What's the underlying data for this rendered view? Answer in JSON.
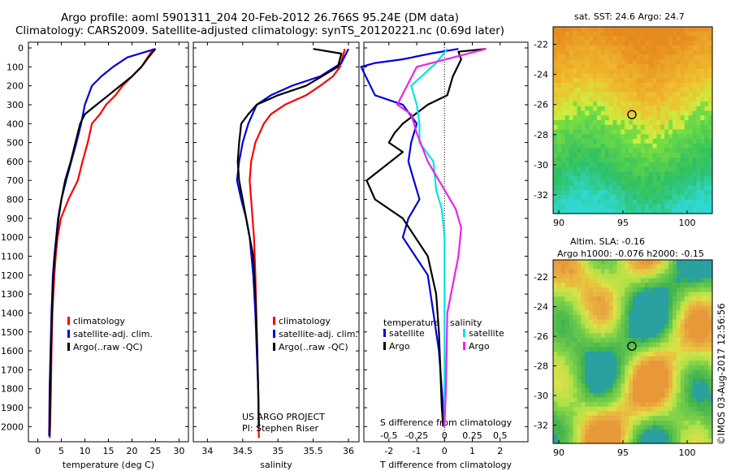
{
  "title_line1": "Argo profile: aoml 5901311_204 20-Feb-2012 26.766S 95.24E (DM data)",
  "title_line2": "Climatology: CARS2009. Satellite-adjusted climatology: synTS_20120221.nc (0.69d later)",
  "colors": {
    "climatology": "#ff0000",
    "satellite": "#0000dd",
    "argo": "#000000",
    "sal_satellite": "#00e5e5",
    "sal_argo": "#ee22ee"
  },
  "chart_data": [
    {
      "id": "temperature",
      "type": "line",
      "xlabel": "temperature (deg C)",
      "xlim": [
        -2,
        32
      ],
      "xticks": [
        0,
        5,
        10,
        15,
        20,
        25,
        30
      ],
      "ylim": [
        2080,
        -30
      ],
      "yticks": [
        0,
        100,
        200,
        300,
        400,
        500,
        600,
        700,
        800,
        900,
        1000,
        1100,
        1200,
        1300,
        1400,
        1500,
        1600,
        1700,
        1800,
        1900,
        2000
      ],
      "series": [
        {
          "name": "climatology",
          "color": "climatology",
          "x": [
            24.5,
            22,
            20,
            18,
            16.5,
            14.5,
            13.2,
            11.5,
            10.6,
            9.5,
            8.5,
            6.5,
            4.9,
            4.2,
            3.8,
            3.5,
            3.1,
            2.9,
            2.8,
            2.6,
            2.5
          ],
          "y": [
            5,
            100,
            150,
            200,
            250,
            300,
            350,
            400,
            500,
            600,
            700,
            800,
            900,
            1000,
            1100,
            1200,
            1400,
            1600,
            1800,
            2000,
            2060
          ]
        },
        {
          "name": "satellite-adj. clim.",
          "color": "satellite",
          "x": [
            25,
            19,
            16,
            13.5,
            11.5,
            10,
            9.2,
            8.2,
            7.1,
            6,
            5,
            4.3,
            3.9,
            3.5,
            3.2,
            2.9,
            2.7,
            2.5,
            2.4
          ],
          "y": [
            5,
            50,
            100,
            150,
            200,
            300,
            400,
            500,
            600,
            700,
            800,
            900,
            1000,
            1100,
            1200,
            1400,
            1600,
            1800,
            2050
          ]
        },
        {
          "name": "Argo(..raw -QC)",
          "color": "argo",
          "x": [
            25,
            24.5,
            23.5,
            22,
            20,
            17.5,
            15,
            12.5,
            10,
            9,
            8,
            7,
            5.8,
            5,
            4.4,
            4,
            3.6,
            3.3,
            3,
            2.8,
            2.6,
            2.5
          ],
          "y": [
            5,
            20,
            50,
            100,
            150,
            200,
            250,
            300,
            350,
            400,
            500,
            600,
            700,
            800,
            900,
            1000,
            1100,
            1200,
            1400,
            1600,
            1800,
            2050
          ]
        }
      ],
      "legend": [
        "climatology",
        "satellite-adj. clim.",
        "Argo(..raw -QC)"
      ]
    },
    {
      "id": "salinity",
      "type": "line",
      "xlabel": "salinity",
      "xlim": [
        33.8,
        36.15
      ],
      "xticks": [
        34,
        34.5,
        35,
        35.5,
        36
      ],
      "xticklabels": [
        "34",
        "34.5",
        "35",
        "35.5",
        "36"
      ],
      "ylim": [
        2080,
        -30
      ],
      "series": [
        {
          "name": "climatology",
          "color": "climatology",
          "x": [
            35.95,
            35.88,
            35.78,
            35.6,
            35.4,
            35.1,
            34.9,
            34.8,
            34.68,
            34.62,
            34.6,
            34.62,
            34.64,
            34.66,
            34.68,
            34.7,
            34.72,
            34.73
          ],
          "y": [
            5,
            100,
            150,
            200,
            250,
            300,
            350,
            400,
            500,
            600,
            700,
            800,
            900,
            1000,
            1200,
            1500,
            1800,
            2060
          ]
        },
        {
          "name": "satellite-adj. clim.",
          "color": "satellite",
          "x": [
            36,
            35.9,
            35.6,
            35.2,
            34.9,
            34.7,
            34.58,
            34.5,
            34.45,
            34.42,
            34.48,
            34.55,
            34.6,
            34.65,
            34.68,
            34.7,
            34.72,
            34.73
          ],
          "y": [
            5,
            80,
            150,
            200,
            250,
            300,
            400,
            500,
            600,
            700,
            800,
            900,
            1000,
            1200,
            1400,
            1600,
            1800,
            2000
          ]
        },
        {
          "name": "Argo(..raw -QC)",
          "color": "argo",
          "x": [
            35.5,
            35.9,
            35.85,
            35.4,
            35.0,
            34.7,
            34.58,
            34.48,
            34.45,
            34.43,
            34.45,
            34.5,
            34.55,
            34.6,
            34.65,
            34.68,
            34.7,
            34.72,
            34.73
          ],
          "y": [
            5,
            30,
            100,
            200,
            250,
            300,
            350,
            400,
            500,
            600,
            700,
            800,
            900,
            1000,
            1100,
            1300,
            1500,
            1800,
            2000
          ]
        }
      ],
      "legend": [
        "climatology",
        "satellite-adj. clim.",
        "Argo(..raw -QC)"
      ],
      "annotation": [
        "US ARGO PROJECT",
        "PI: Stephen Riser"
      ]
    },
    {
      "id": "differences",
      "type": "line",
      "xlabel": "T difference from climatology",
      "xlabel_top": "S difference from climatology",
      "xlim": [
        -2.9,
        3.0
      ],
      "xticks": [
        -2,
        -1,
        0,
        1,
        2
      ],
      "xticks_top": [
        -0.5,
        -0.25,
        0,
        0.25,
        0.5
      ],
      "ylim": [
        2080,
        -30
      ],
      "series": [
        {
          "name": "T satellite",
          "color": "satellite",
          "x": [
            0.5,
            -0.5,
            -1.5,
            -2.5,
            -3,
            -2.5,
            -1.5,
            -1,
            -1.2,
            -1.3,
            -1.1,
            -0.9,
            -1.3,
            -1.5,
            -0.6,
            -0.4,
            -0.2,
            -0.1,
            0
          ],
          "y": [
            5,
            30,
            60,
            80,
            100,
            250,
            300,
            400,
            500,
            600,
            700,
            800,
            900,
            1000,
            1200,
            1400,
            1600,
            1800,
            2000
          ]
        },
        {
          "name": "T Argo",
          "color": "argo",
          "x": [
            1.5,
            0.5,
            0.6,
            0.3,
            0.1,
            -0.6,
            -1.5,
            -1.8,
            -2.0,
            -1.5,
            -2.8,
            -2.5,
            -1.5,
            -0.6,
            -0.3,
            -0.2,
            -0.15,
            -0.1,
            -0.05
          ],
          "y": [
            5,
            20,
            60,
            150,
            250,
            300,
            400,
            450,
            500,
            550,
            700,
            800,
            900,
            1100,
            1300,
            1500,
            1700,
            1900,
            2000
          ]
        },
        {
          "name": "S satellite",
          "color": "sal_satellite",
          "x": [
            0.1,
            -0.3,
            -1.2,
            -1.0,
            -0.9,
            -0.9,
            -0.4,
            -0.3,
            -0.1,
            0,
            0,
            0
          ],
          "y": [
            5,
            80,
            200,
            300,
            400,
            500,
            600,
            750,
            850,
            1000,
            1500,
            2000
          ]
        },
        {
          "name": "S Argo",
          "color": "sal_argo",
          "x": [
            1.5,
            -1,
            -1.7,
            -1.2,
            -1.0,
            -0.6,
            -0.2,
            0.4,
            0.6,
            0.5,
            0.1,
            0.05,
            0
          ],
          "y": [
            5,
            100,
            300,
            350,
            450,
            600,
            700,
            850,
            950,
            1100,
            1400,
            1800,
            2000
          ]
        }
      ],
      "legend_titles": [
        "temperature",
        "salinity"
      ],
      "legend_labels": [
        "satellite",
        "Argo",
        "satellite",
        "Argo"
      ]
    }
  ],
  "maps": [
    {
      "id": "sst-map",
      "title": "sat. SST: 24.6  Argo: 24.7",
      "yticklabels": [
        "-22",
        "-24",
        "-26",
        "-28",
        "-30",
        "-32"
      ],
      "xticklabels": [
        "90",
        "95",
        "100"
      ]
    },
    {
      "id": "sla-map",
      "title_line1": "Altim. SLA: -0.16",
      "title_line2": "Argo h1000: -0.076 h2000: -0.15",
      "yticklabels": [
        "-22",
        "-24",
        "-26",
        "-28",
        "-30",
        "-32"
      ],
      "xticklabels": [
        "90",
        "95",
        "100"
      ]
    }
  ],
  "watermark": "©IMOS 03-Aug-2017 12:56:56"
}
